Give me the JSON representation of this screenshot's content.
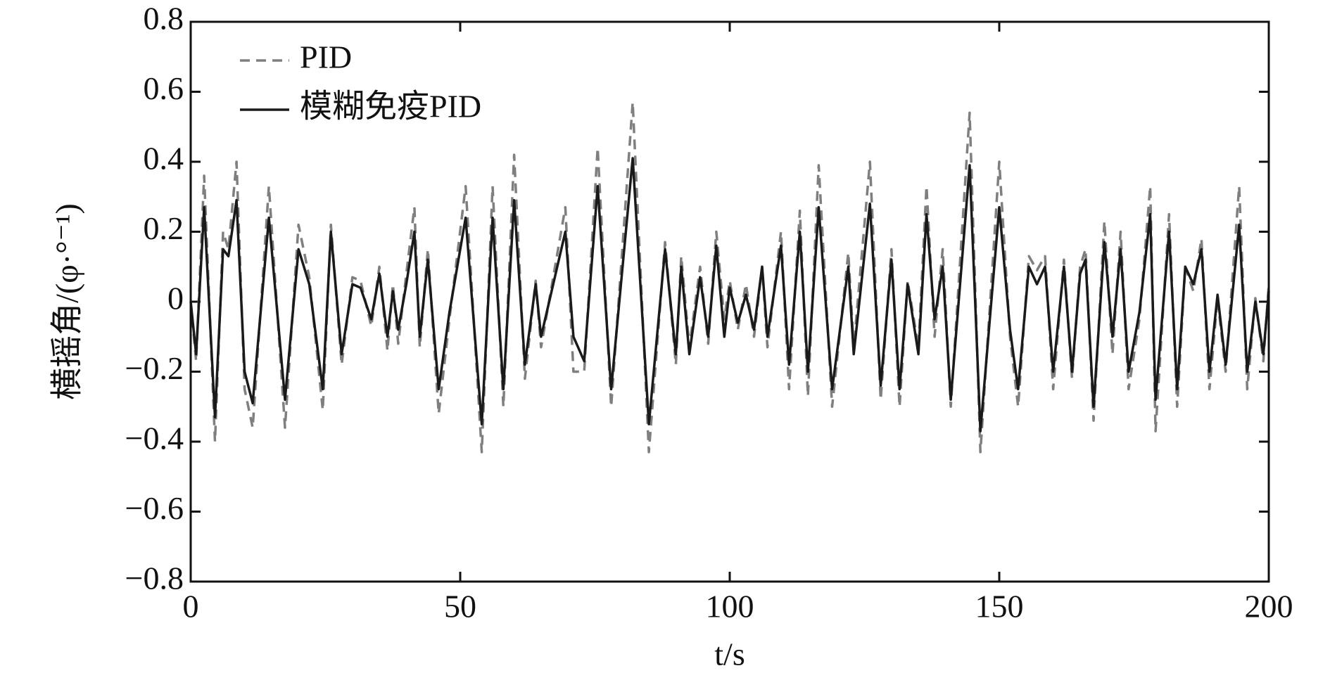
{
  "chart_data": {
    "type": "line",
    "x_label": "t/s",
    "y_label": "横摇角/(φ·°⁻¹)",
    "xlim": [
      0,
      200
    ],
    "xticks": [
      0,
      50,
      100,
      150,
      200
    ],
    "ylim": [
      -0.8,
      0.8
    ],
    "yticks": [
      {
        "value": -0.8,
        "label": "−0.8"
      },
      {
        "value": -0.6,
        "label": "−0.6"
      },
      {
        "value": -0.4,
        "label": "−0.4"
      },
      {
        "value": -0.2,
        "label": "−0.2"
      },
      0,
      0.2,
      0.4,
      0.6,
      0.8
    ],
    "legend": "upper left",
    "x": [
      0,
      1,
      2.5,
      4.5,
      6,
      7,
      8.5,
      10,
      11.5,
      14.5,
      17.5,
      20,
      22,
      24.5,
      26,
      28,
      30,
      31.5,
      33.5,
      35,
      36.5,
      37.5,
      38.5,
      40,
      41.5,
      42.5,
      44,
      46,
      48,
      51,
      54,
      56,
      58,
      60,
      62,
      64,
      65,
      69.5,
      71,
      73,
      75.5,
      78,
      82,
      85,
      88,
      90,
      91,
      92.5,
      94.5,
      96,
      97.5,
      99,
      100,
      101.5,
      103,
      104.5,
      106,
      107,
      109.5,
      111,
      113,
      114.5,
      116.5,
      119,
      122,
      123,
      126,
      128,
      130,
      131.5,
      133,
      135,
      136.5,
      138,
      139.5,
      141,
      144.5,
      146.5,
      150,
      152,
      153.5,
      155.5,
      157,
      158.5,
      160,
      162,
      163.5,
      165,
      166,
      167.5,
      169.5,
      171,
      172.5,
      174,
      176,
      178,
      179,
      181.5,
      183,
      184.5,
      186,
      187.5,
      189,
      190.5,
      192,
      194.5,
      196,
      197.5,
      199,
      200
    ],
    "series": [
      {
        "name": "PID",
        "color": "#7f7f7f",
        "dash": true,
        "values": [
          0,
          -0.17,
          0.36,
          -0.4,
          0.2,
          0.15,
          0.4,
          -0.25,
          -0.36,
          0.33,
          -0.36,
          0.22,
          0.07,
          -0.31,
          0.22,
          -0.18,
          0.07,
          0.06,
          -0.07,
          0.1,
          -0.14,
          0.05,
          -0.12,
          0.08,
          0.27,
          -0.13,
          0.15,
          -0.32,
          -0.05,
          0.33,
          -0.43,
          0.33,
          -0.3,
          0.42,
          -0.22,
          0.06,
          -0.13,
          0.27,
          -0.2,
          -0.2,
          0.44,
          -0.3,
          0.57,
          -0.43,
          0.17,
          -0.18,
          0.13,
          -0.13,
          0.1,
          -0.12,
          0.2,
          -0.05,
          0.06,
          -0.08,
          0.05,
          -0.1,
          0.1,
          -0.13,
          0.2,
          -0.25,
          0.26,
          -0.27,
          0.39,
          -0.3,
          0.14,
          -0.13,
          0.4,
          -0.28,
          0.15,
          -0.3,
          0.06,
          -0.13,
          0.33,
          -0.1,
          0.15,
          -0.3,
          0.54,
          -0.43,
          0.4,
          -0.1,
          -0.3,
          0.13,
          0.09,
          0.13,
          -0.25,
          0.12,
          -0.22,
          0.1,
          0.15,
          -0.34,
          0.23,
          -0.15,
          0.2,
          -0.25,
          -0.05,
          0.33,
          -0.37,
          0.25,
          -0.3,
          0.1,
          0.03,
          0.18,
          -0.25,
          0.01,
          -0.2,
          0.33,
          -0.25,
          0.01,
          -0.17,
          0.05
        ]
      },
      {
        "name": "模糊免疫PID",
        "color": "#1a1a1a",
        "dash": false,
        "values": [
          0,
          -0.15,
          0.27,
          -0.33,
          0.15,
          0.13,
          0.29,
          -0.2,
          -0.29,
          0.24,
          -0.28,
          0.15,
          0.05,
          -0.25,
          0.2,
          -0.15,
          0.05,
          0.04,
          -0.05,
          0.08,
          -0.1,
          0.03,
          -0.08,
          0.05,
          0.2,
          -0.1,
          0.12,
          -0.25,
          -0.03,
          0.24,
          -0.35,
          0.24,
          -0.25,
          0.29,
          -0.18,
          0.05,
          -0.1,
          0.2,
          -0.1,
          -0.17,
          0.33,
          -0.25,
          0.41,
          -0.35,
          0.15,
          -0.15,
          0.1,
          -0.15,
          0.07,
          -0.1,
          0.16,
          -0.1,
          0.04,
          -0.06,
          0.02,
          -0.08,
          0.1,
          -0.1,
          0.16,
          -0.18,
          0.2,
          -0.2,
          0.27,
          -0.25,
          0.1,
          -0.15,
          0.28,
          -0.24,
          0.12,
          -0.25,
          0.05,
          -0.15,
          0.25,
          -0.05,
          0.1,
          -0.28,
          0.39,
          -0.37,
          0.27,
          -0.08,
          -0.25,
          0.1,
          0.05,
          0.1,
          -0.2,
          0.1,
          -0.2,
          0.08,
          0.12,
          -0.3,
          0.17,
          -0.1,
          0.15,
          -0.2,
          -0.03,
          0.25,
          -0.28,
          0.2,
          -0.25,
          0.1,
          0.05,
          0.15,
          -0.2,
          0.02,
          -0.18,
          0.22,
          -0.2,
          0,
          -0.15,
          0.03
        ]
      }
    ]
  }
}
